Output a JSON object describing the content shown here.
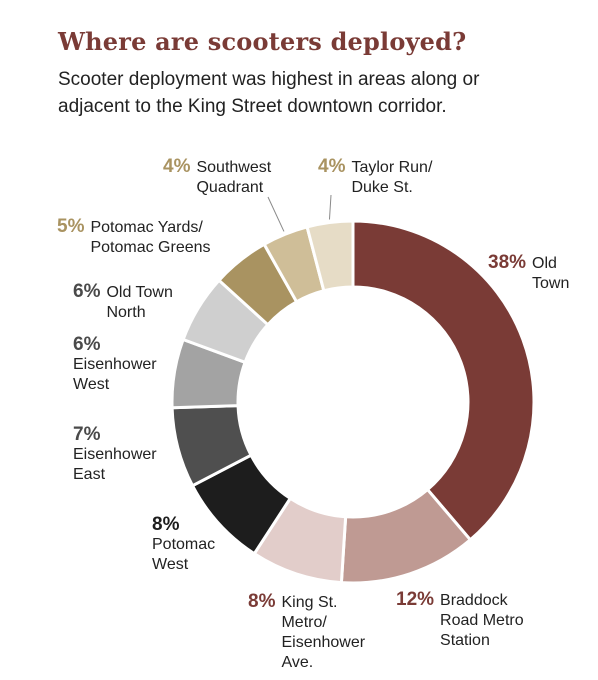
{
  "header": {
    "title": "Where are scooters deployed?",
    "subtitle": "Scooter deployment was highest in areas along or adjacent to the King Street downtown corridor."
  },
  "chart_data": {
    "type": "pie",
    "donut": true,
    "unit": "%",
    "slices": [
      {
        "label": "Old Town",
        "label_lines": [
          "Old",
          "Town"
        ],
        "pct_text": "38%",
        "value": 38,
        "color": "#7a3b36",
        "pct_color": "#7a3b36"
      },
      {
        "label": "Braddock Road Metro Station",
        "label_lines": [
          "Braddock",
          "Road Metro",
          "Station"
        ],
        "pct_text": "12%",
        "value": 12,
        "color": "#bf9a93",
        "pct_color": "#7a3b36"
      },
      {
        "label": "King St. Metro/ Eisenhower Ave.",
        "label_lines": [
          "King St.",
          "Metro/",
          "Eisenhower",
          "Ave."
        ],
        "pct_text": "8%",
        "value": 8,
        "color": "#e2cdca",
        "pct_color": "#7a3b36"
      },
      {
        "label": "Potomac West",
        "label_lines": [
          "Potomac",
          "West"
        ],
        "pct_text": "8%",
        "value": 8,
        "color": "#1d1d1d",
        "pct_color": "#1d1d1d"
      },
      {
        "label": "Eisenhower East",
        "label_lines": [
          "Eisenhower",
          "East"
        ],
        "pct_text": "7%",
        "value": 7,
        "color": "#4f4f4f",
        "pct_color": "#4a4a4a"
      },
      {
        "label": "Eisenhower West",
        "label_lines": [
          "Eisenhower",
          "West"
        ],
        "pct_text": "6%",
        "value": 6,
        "color": "#a3a3a3",
        "pct_color": "#4a4a4a"
      },
      {
        "label": "Old Town North",
        "label_lines": [
          "Old Town",
          "North"
        ],
        "pct_text": "6%",
        "value": 6,
        "color": "#cfcfcf",
        "pct_color": "#4a4a4a"
      },
      {
        "label": "Potomac Yards/ Potomac Greens",
        "label_lines": [
          "Potomac Yards/",
          "Potomac Greens"
        ],
        "pct_text": "5%",
        "value": 5,
        "color": "#a99361",
        "pct_color": "#a99361"
      },
      {
        "label": "Southwest Quadrant",
        "label_lines": [
          "Southwest",
          "Quadrant"
        ],
        "pct_text": "4%",
        "value": 4,
        "color": "#cfbe98",
        "pct_color": "#a99361"
      },
      {
        "label": "Taylor Run/ Duke St.",
        "label_lines": [
          "Taylor Run/",
          "Duke St."
        ],
        "pct_text": "4%",
        "value": 4,
        "color": "#e6dcc6",
        "pct_color": "#a99361"
      }
    ]
  }
}
